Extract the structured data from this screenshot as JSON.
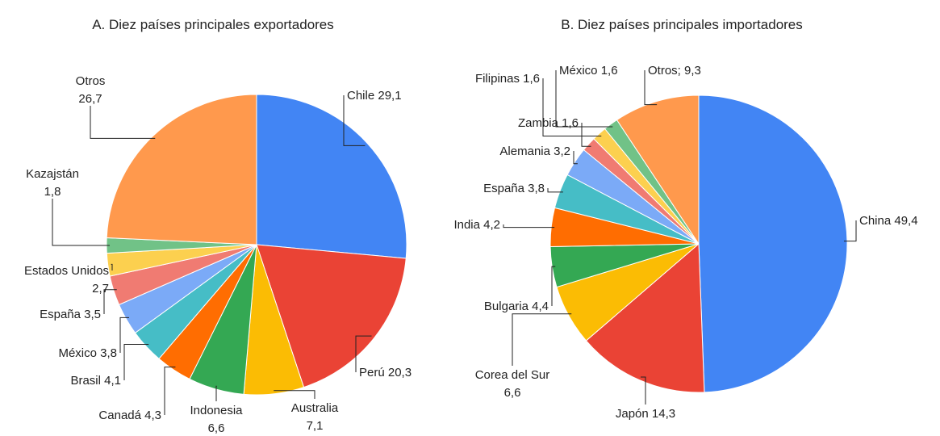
{
  "chart_data": [
    {
      "type": "pie",
      "title": "A. Diez países principales exportadores",
      "categories": [
        "Chile",
        "Perú",
        "Australia",
        "Indonesia",
        "Canadá",
        "Brasil",
        "México",
        "España",
        "Estados Unidos",
        "Kazajstán",
        "Otros"
      ],
      "values": [
        29.1,
        20.3,
        7.1,
        6.6,
        4.3,
        4.1,
        3.8,
        3.5,
        2.7,
        1.8,
        26.7
      ],
      "value_labels": [
        "29,1",
        "20,3",
        "7,1",
        "6,6",
        "4,3",
        "4,1",
        "3,8",
        "3,5",
        "2,7",
        "1,8",
        "26,7"
      ],
      "colors": [
        "#4285f4",
        "#ea4335",
        "#fbbc04",
        "#34a853",
        "#ff6d01",
        "#46bdc6",
        "#7baaf7",
        "#f07b72",
        "#fcd04f",
        "#71c287",
        "#ff994d"
      ]
    },
    {
      "type": "pie",
      "title": "B. Diez países principales importadores",
      "categories": [
        "China",
        "Japón",
        "Corea del Sur",
        "Bulgaria",
        "India",
        "España",
        "Alemania",
        "Zambia",
        "Filipinas",
        "México",
        "Otros;"
      ],
      "values": [
        49.4,
        14.3,
        6.6,
        4.4,
        4.2,
        3.8,
        3.2,
        1.6,
        1.6,
        1.6,
        9.3
      ],
      "value_labels": [
        "49,4",
        "14,3",
        "6,6",
        "4,4",
        "4,2",
        "3,8",
        "3,2",
        "1,6",
        "1,6",
        "1,6",
        "9,3"
      ],
      "colors": [
        "#4285f4",
        "#ea4335",
        "#fbbc04",
        "#34a853",
        "#ff6d01",
        "#46bdc6",
        "#7baaf7",
        "#f07b72",
        "#fcd04f",
        "#71c287",
        "#ff994d"
      ]
    }
  ]
}
